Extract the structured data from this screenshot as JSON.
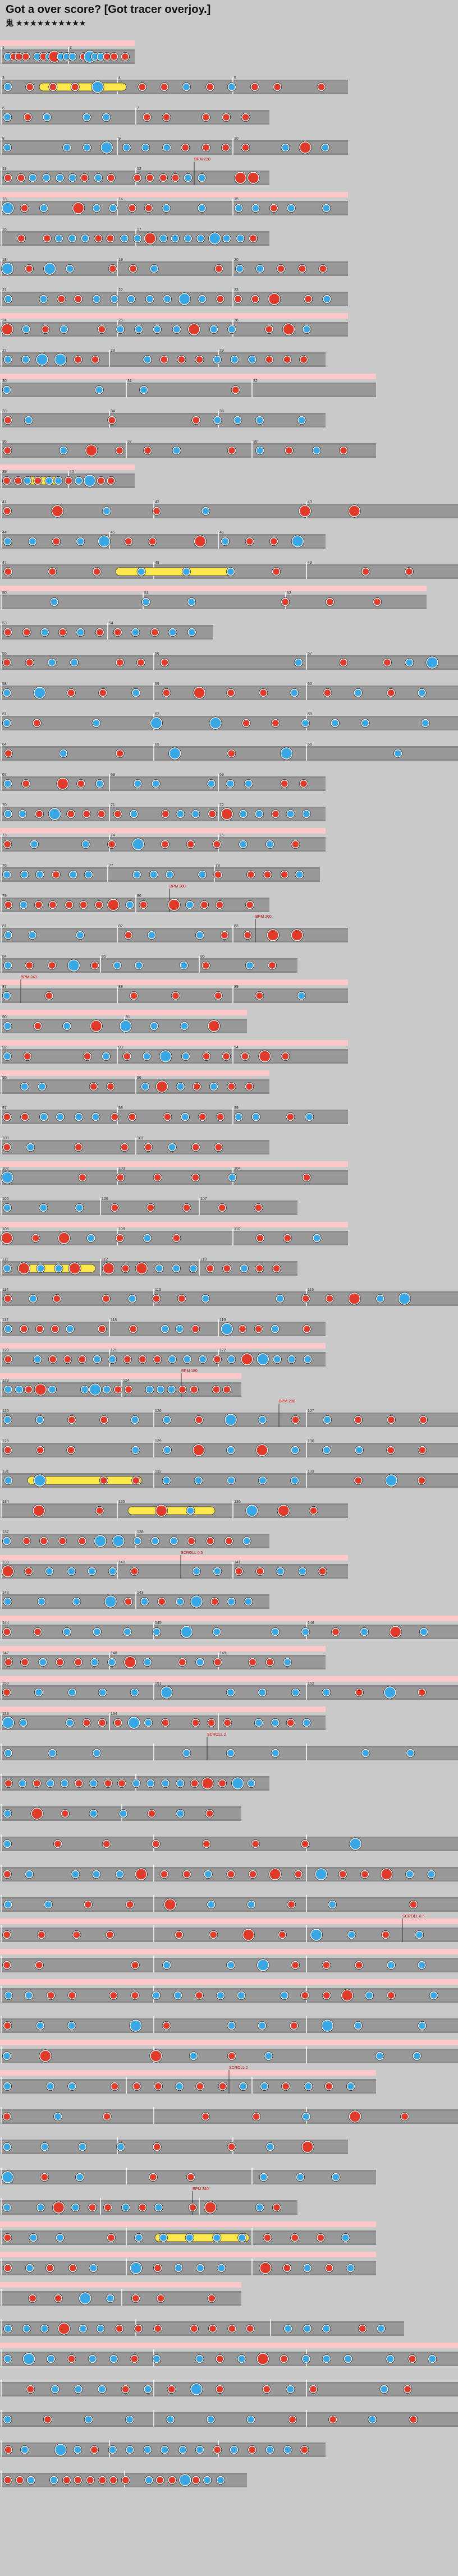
{
  "title": "Got a over score? [Got tracer overjoy.]",
  "difficulty": {
    "label": "鬼",
    "stars": "★★★★★★★★★★"
  },
  "colors": {
    "background": "#c9c9c9",
    "lane": "#8a8a8a",
    "lane_alt": "#aaaaaa",
    "gogo": "#ffc8c8",
    "don": "#e03a2a",
    "ka": "#39a7e6",
    "roll": "#ffe84a",
    "bar_line": "#ffffff",
    "marker_text": "#cc0000"
  },
  "icon_names": [
    "don-note-icon",
    "ka-note-icon",
    "big-don-note-icon",
    "big-ka-note-icon",
    "drumroll-icon"
  ],
  "measure_labels": [
    "1",
    "2",
    "3",
    "4",
    "5",
    "6",
    "7",
    "8",
    "9",
    "10",
    "11",
    "12",
    "13",
    "14",
    "15",
    "16",
    "17",
    "18",
    "19",
    "20",
    "21",
    "22",
    "23",
    "24",
    "25",
    "26",
    "27",
    "28",
    "29",
    "30",
    "31",
    "32",
    "33",
    "34",
    "35",
    "36",
    "37",
    "38",
    "39",
    "40",
    "41",
    "42",
    "43",
    "44",
    "45",
    "46",
    "47",
    "48",
    "49",
    "50",
    "51",
    "52",
    "53",
    "54",
    "55",
    "56",
    "57",
    "58",
    "59",
    "60",
    "61",
    "62",
    "63",
    "64",
    "65",
    "66",
    "67",
    "68",
    "69",
    "70",
    "71",
    "72",
    "73",
    "74",
    "75",
    "76",
    "77",
    "78",
    "79",
    "80",
    "81",
    "82",
    "83",
    "84",
    "85",
    "86",
    "87",
    "88",
    "89",
    "90",
    "91",
    "92",
    "93",
    "94",
    "95",
    "96",
    "97",
    "98",
    "99",
    "100",
    "101",
    "102",
    "103",
    "104",
    "105",
    "106",
    "107",
    "108",
    "109",
    "110",
    "111",
    "112",
    "113",
    "114",
    "115",
    "116",
    "117",
    "118",
    "119",
    "120",
    "121",
    "122",
    "123",
    "124",
    "125",
    "126",
    "127",
    "128",
    "129",
    "130",
    "131",
    "132",
    "133",
    "134",
    "135",
    "136",
    "137",
    "138",
    "139",
    "140",
    "141",
    "142",
    "143",
    "144",
    "145",
    "146",
    "147",
    "148",
    "149",
    "150",
    "151",
    "152",
    "153",
    "154"
  ],
  "markers": [
    "BPM 200",
    "BPM 220",
    "SCROLL 2",
    "SCROLL 0.5",
    "BPM 180",
    "BPM 240"
  ]
}
